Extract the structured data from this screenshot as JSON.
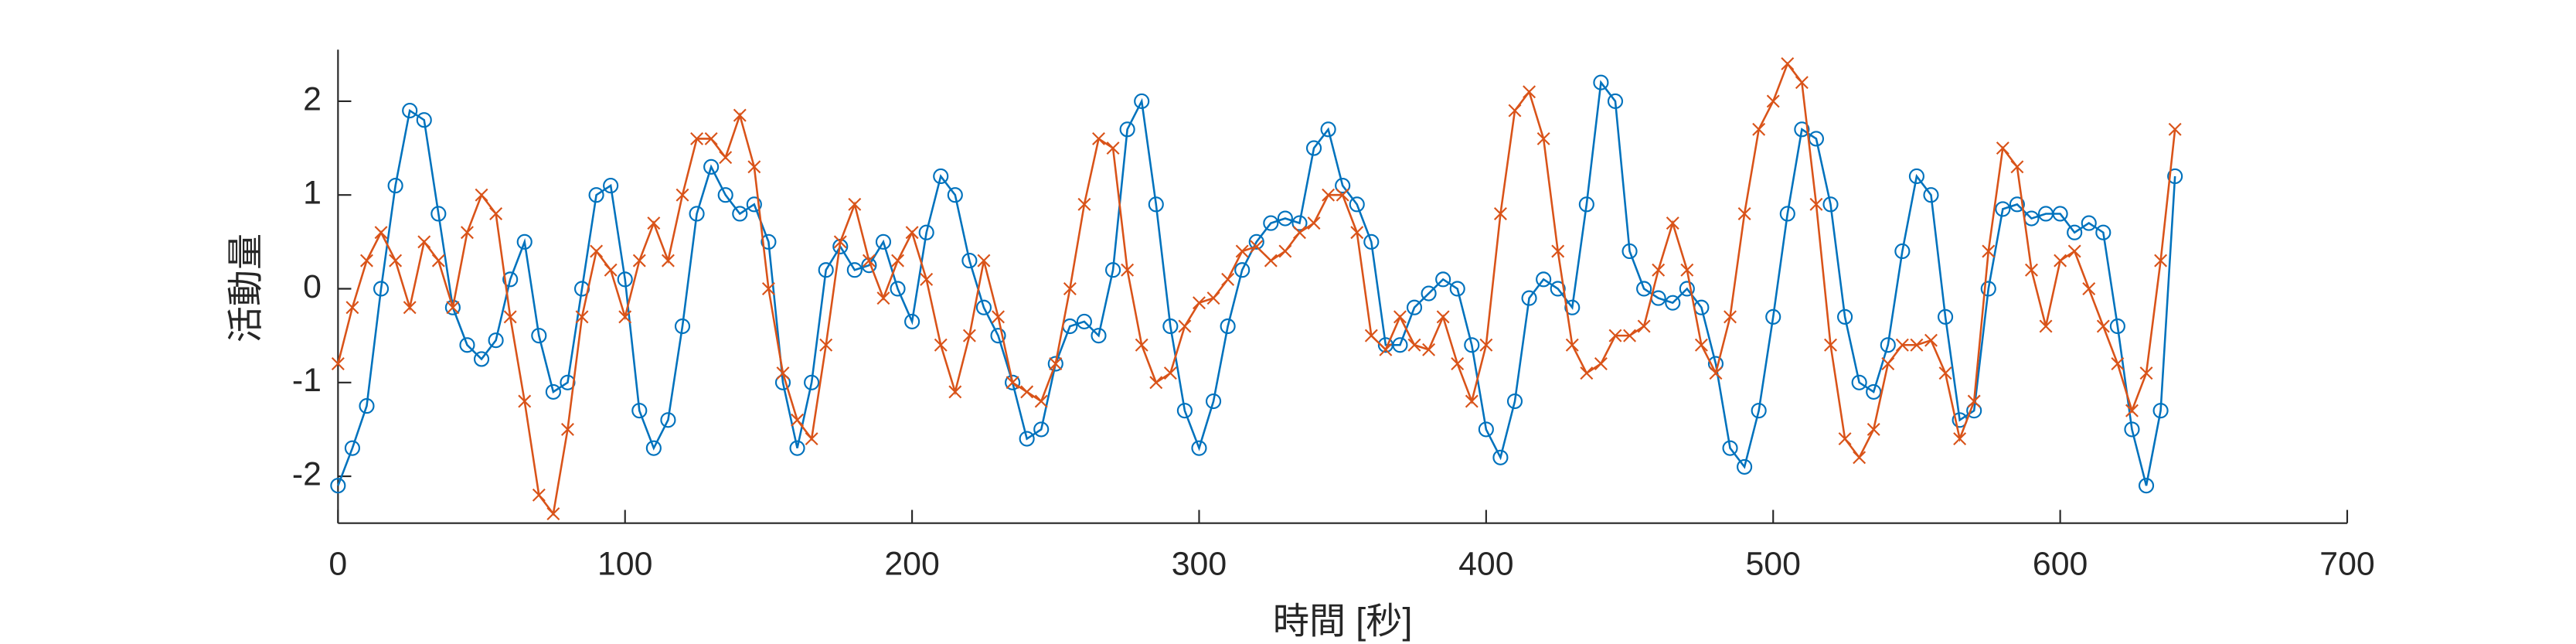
{
  "chart_data": {
    "type": "line",
    "xlabel": "時間 [秒]",
    "ylabel": "活動量",
    "x": [
      0,
      5,
      10,
      15,
      20,
      25,
      30,
      35,
      40,
      45,
      50,
      55,
      60,
      65,
      70,
      75,
      80,
      85,
      90,
      95,
      100,
      105,
      110,
      115,
      120,
      125,
      130,
      135,
      140,
      145,
      150,
      155,
      160,
      165,
      170,
      175,
      180,
      185,
      190,
      195,
      200,
      205,
      210,
      215,
      220,
      225,
      230,
      235,
      240,
      245,
      250,
      255,
      260,
      265,
      270,
      275,
      280,
      285,
      290,
      295,
      300,
      305,
      310,
      315,
      320,
      325,
      330,
      335,
      340,
      345,
      350,
      355,
      360,
      365,
      370,
      375,
      380,
      385,
      390,
      395,
      400,
      405,
      410,
      415,
      420,
      425,
      430,
      435,
      440,
      445,
      450,
      455,
      460,
      465,
      470,
      475,
      480,
      485,
      490,
      495,
      500,
      505,
      510,
      515,
      520,
      525,
      530,
      535,
      540,
      545,
      550,
      555,
      560,
      565,
      570,
      575,
      580,
      585,
      590,
      595,
      600,
      605,
      610,
      615,
      620,
      625,
      630,
      635,
      640
    ],
    "series": [
      {
        "color": "#0072bd",
        "marker": "circle",
        "values": [
          -2.1,
          -1.7,
          -1.25,
          0.0,
          1.1,
          1.9,
          1.8,
          0.8,
          -0.2,
          -0.6,
          -0.75,
          -0.55,
          0.1,
          0.5,
          -0.5,
          -1.1,
          -1.0,
          0.0,
          1.0,
          1.1,
          0.1,
          -1.3,
          -1.7,
          -1.4,
          -0.4,
          0.8,
          1.3,
          1.0,
          0.8,
          0.9,
          0.5,
          -1.0,
          -1.7,
          -1.0,
          0.2,
          0.45,
          0.2,
          0.25,
          0.5,
          0.0,
          -0.35,
          0.6,
          1.2,
          1.0,
          0.3,
          -0.2,
          -0.5,
          -1.0,
          -1.6,
          -1.5,
          -0.8,
          -0.4,
          -0.35,
          -0.5,
          0.2,
          1.7,
          2.0,
          0.9,
          -0.4,
          -1.3,
          -1.7,
          -1.2,
          -0.4,
          0.2,
          0.5,
          0.7,
          0.75,
          0.7,
          1.5,
          1.7,
          1.1,
          0.9,
          0.5,
          -0.6,
          -0.6,
          -0.2,
          -0.05,
          0.1,
          0.0,
          -0.6,
          -1.5,
          -1.8,
          -1.2,
          -0.1,
          0.1,
          0.0,
          -0.2,
          0.9,
          2.2,
          2.0,
          0.4,
          0.0,
          -0.1,
          -0.15,
          0.0,
          -0.2,
          -0.8,
          -1.7,
          -1.9,
          -1.3,
          -0.3,
          0.8,
          1.7,
          1.6,
          0.9,
          -0.3,
          -1.0,
          -1.1,
          -0.6,
          0.4,
          1.2,
          1.0,
          -0.3,
          -1.4,
          -1.3,
          0.0,
          0.85,
          0.9,
          0.75,
          0.8,
          0.8,
          0.6,
          0.7,
          0.6,
          -0.4,
          -1.5,
          -2.1,
          -1.3,
          1.2
        ]
      },
      {
        "color": "#d95319",
        "marker": "cross",
        "values": [
          -0.8,
          -0.2,
          0.3,
          0.6,
          0.3,
          -0.2,
          0.5,
          0.3,
          -0.2,
          0.6,
          1.0,
          0.8,
          -0.3,
          -1.2,
          -2.2,
          -2.4,
          -1.5,
          -0.3,
          0.4,
          0.2,
          -0.3,
          0.3,
          0.7,
          0.3,
          1.0,
          1.6,
          1.6,
          1.4,
          1.85,
          1.3,
          0.0,
          -0.9,
          -1.4,
          -1.6,
          -0.6,
          0.5,
          0.9,
          0.3,
          -0.1,
          0.3,
          0.6,
          0.1,
          -0.6,
          -1.1,
          -0.5,
          0.3,
          -0.3,
          -1.0,
          -1.1,
          -1.2,
          -0.8,
          0.0,
          0.9,
          1.6,
          1.5,
          0.2,
          -0.6,
          -1.0,
          -0.9,
          -0.4,
          -0.15,
          -0.1,
          0.1,
          0.4,
          0.45,
          0.3,
          0.4,
          0.6,
          0.7,
          1.0,
          1.0,
          0.6,
          -0.5,
          -0.65,
          -0.3,
          -0.6,
          -0.65,
          -0.3,
          -0.8,
          -1.2,
          -0.6,
          0.8,
          1.9,
          2.1,
          1.6,
          0.4,
          -0.6,
          -0.9,
          -0.8,
          -0.5,
          -0.5,
          -0.4,
          0.2,
          0.7,
          0.2,
          -0.6,
          -0.9,
          -0.3,
          0.8,
          1.7,
          2.0,
          2.4,
          2.2,
          0.9,
          -0.6,
          -1.6,
          -1.8,
          -1.5,
          -0.8,
          -0.6,
          -0.6,
          -0.55,
          -0.9,
          -1.6,
          -1.2,
          0.4,
          1.5,
          1.3,
          0.2,
          -0.4,
          0.3,
          0.4,
          0.0,
          -0.4,
          -0.8,
          -1.3,
          -0.9,
          0.3,
          1.7
        ]
      }
    ],
    "xlim": [
      0,
      700
    ],
    "xticks": [
      0,
      100,
      200,
      300,
      400,
      500,
      600,
      700
    ],
    "ylim": [
      -2.5,
      2.55
    ],
    "yticks": [
      -2,
      -1,
      0,
      1,
      2
    ],
    "grid": false
  }
}
